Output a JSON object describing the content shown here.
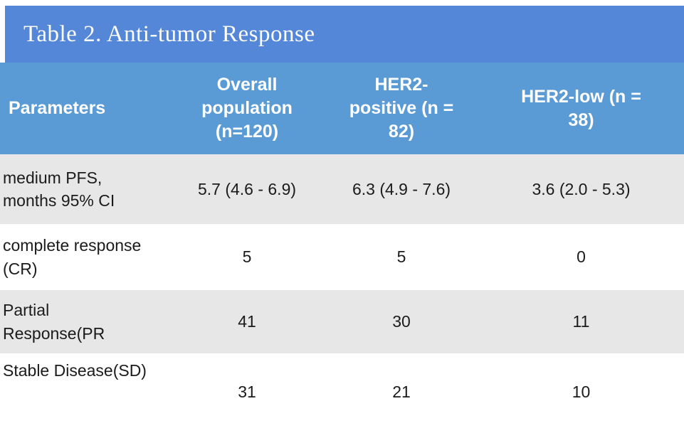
{
  "table": {
    "title": "Table 2. Anti-tumor Response",
    "header": {
      "col1": "Parameters",
      "col2": [
        "Overall",
        "population",
        "(n=120)"
      ],
      "col3": [
        "HER2-",
        "positive (n =",
        "82)"
      ],
      "col4": [
        "HER2-low (n =",
        "38)"
      ]
    },
    "rows": [
      {
        "label": [
          "medium PFS,",
          "months 95% CI"
        ],
        "values": [
          "5.7 (4.6 - 6.9)",
          "6.3 (4.9 - 7.6)",
          "3.6 (2.0 - 5.3)"
        ]
      },
      {
        "label": [
          "complete response",
          "(CR)"
        ],
        "values": [
          "5",
          "5",
          "0"
        ]
      },
      {
        "label": [
          "Partial",
          "Response(PR"
        ],
        "values": [
          "41",
          "30",
          "11"
        ]
      },
      {
        "label": [
          "Stable Disease(SD)"
        ],
        "values": [
          "31",
          "21",
          "10"
        ]
      }
    ]
  },
  "colors": {
    "title_bar_bg": "#5487d8",
    "header_bg": "#5b9bd5",
    "zebra_row_bg": "#e7e7e7",
    "white_row_bg": "#ffffff",
    "header_text": "#ffffff",
    "body_text": "#1b1b1b"
  },
  "chart_data": {
    "type": "table",
    "title": "Table 2. Anti-tumor Response",
    "columns": [
      "Parameters",
      "Overall population (n=120)",
      "HER2-positive (n = 82)",
      "HER2-low (n = 38)"
    ],
    "rows": [
      [
        "medium PFS, months 95% CI",
        "5.7 (4.6 - 6.9)",
        "6.3 (4.9 - 7.6)",
        "3.6 (2.0 - 5.3)"
      ],
      [
        "complete response (CR)",
        "5",
        "5",
        "0"
      ],
      [
        "Partial Response(PR",
        "41",
        "30",
        "11"
      ],
      [
        "Stable Disease(SD)",
        "31",
        "21",
        "10"
      ]
    ]
  }
}
